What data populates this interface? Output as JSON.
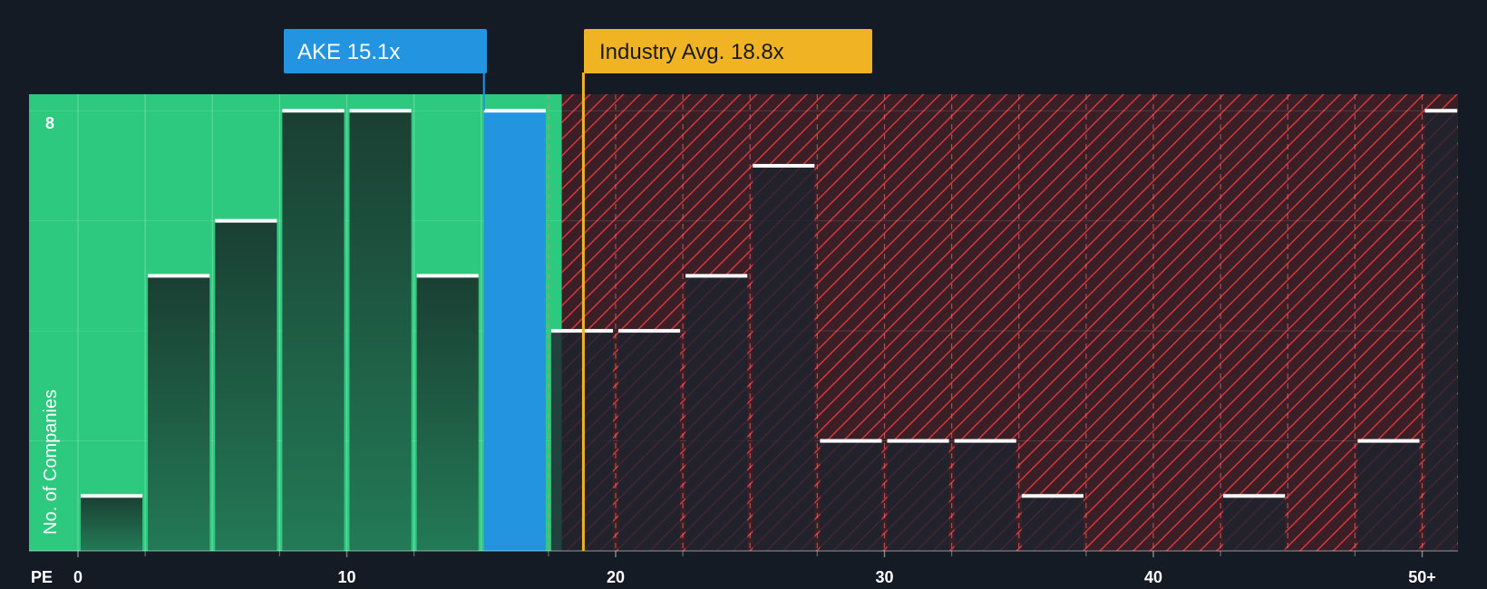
{
  "chart_data": {
    "type": "bar",
    "x_axis_label": "PE",
    "y_axis_label": "No. of Companies",
    "x_ticks": [
      "0",
      "10",
      "20",
      "30",
      "40",
      "50+"
    ],
    "x_tick_values": [
      0,
      10,
      20,
      30,
      40,
      50
    ],
    "y_ticks": [
      "8"
    ],
    "y_tick_values": [
      8
    ],
    "xlim": [
      -1.8,
      51.3
    ],
    "ylim": [
      0,
      8.3
    ],
    "bins": [
      {
        "x0": 0,
        "x1": 2.5,
        "count": 1
      },
      {
        "x0": 2.5,
        "x1": 5,
        "count": 5
      },
      {
        "x0": 5,
        "x1": 7.5,
        "count": 6
      },
      {
        "x0": 7.5,
        "x1": 10,
        "count": 8
      },
      {
        "x0": 10,
        "x1": 12.5,
        "count": 8
      },
      {
        "x0": 12.5,
        "x1": 15,
        "count": 5
      },
      {
        "x0": 15,
        "x1": 17.5,
        "count": 8,
        "highlight": true
      },
      {
        "x0": 17.5,
        "x1": 20,
        "count": 4
      },
      {
        "x0": 20,
        "x1": 22.5,
        "count": 4
      },
      {
        "x0": 22.5,
        "x1": 25,
        "count": 5
      },
      {
        "x0": 25,
        "x1": 27.5,
        "count": 7
      },
      {
        "x0": 27.5,
        "x1": 30,
        "count": 2
      },
      {
        "x0": 30,
        "x1": 32.5,
        "count": 2
      },
      {
        "x0": 32.5,
        "x1": 35,
        "count": 2
      },
      {
        "x0": 35,
        "x1": 37.5,
        "count": 1
      },
      {
        "x0": 37.5,
        "x1": 40,
        "count": 0
      },
      {
        "x0": 40,
        "x1": 42.5,
        "count": 0
      },
      {
        "x0": 42.5,
        "x1": 45,
        "count": 1
      },
      {
        "x0": 45,
        "x1": 47.5,
        "count": 0
      },
      {
        "x0": 47.5,
        "x1": 50,
        "count": 2
      },
      {
        "x0": 50,
        "x1": 51.3,
        "count": 8
      }
    ],
    "company": {
      "label": "AKE 15.1x",
      "value": 15.1
    },
    "industry_avg": {
      "label": "Industry Avg. 18.8x",
      "value": 18.8
    },
    "fair_region_end": 18.0,
    "grid": true,
    "colors": {
      "background": "#151b24",
      "fair_region": "#2dc97e",
      "bar_fair": "#1b4a3a",
      "bar_over": "#1d2330",
      "highlight": "#2394e0",
      "overvalued_region": "#3b1f26",
      "hatch": "#d2383c",
      "industry_line": "#f0b323",
      "bar_cap": "#ffffff",
      "text": "#ffffff"
    }
  }
}
